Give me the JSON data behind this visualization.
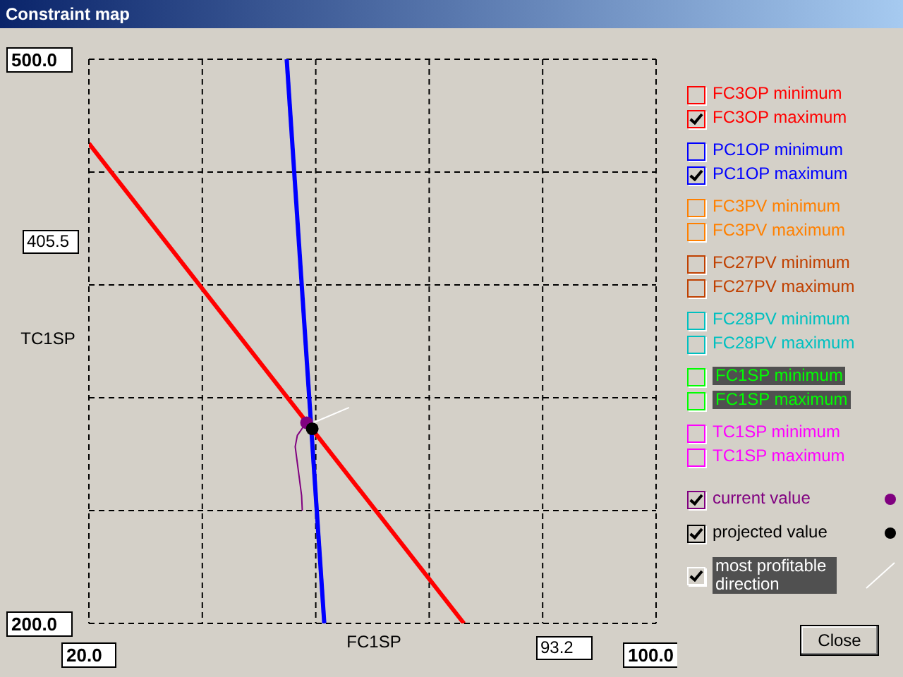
{
  "chart_data": {
    "type": "line",
    "title": "Constraint map",
    "xlabel": "FC1SP",
    "ylabel": "TC1SP",
    "xlim": [
      20,
      100
    ],
    "ylim": [
      200,
      500
    ],
    "xticks": [
      {
        "value": 20,
        "label": "20.0"
      },
      {
        "value": 36,
        "label": null
      },
      {
        "value": 52,
        "label": null
      },
      {
        "value": 68,
        "label": null
      },
      {
        "value": 84,
        "label": null
      },
      {
        "value": 100,
        "label": "100.0"
      }
    ],
    "yticks": [
      {
        "value": 200,
        "label": "200.0"
      },
      {
        "value": 260,
        "label": null
      },
      {
        "value": 320,
        "label": null
      },
      {
        "value": 380,
        "label": null
      },
      {
        "value": 440,
        "label": null
      },
      {
        "value": 500,
        "label": "500.0"
      }
    ],
    "grid": true,
    "legend": "right",
    "annotations": [
      "405.5",
      "93.2",
      "Close"
    ],
    "series": [
      {
        "name": "FC3OP minimum",
        "color": "#ff0000"
      },
      {
        "name": "FC3OP maximum",
        "color": "#ff0000",
        "x": [
          20,
          72.9
        ],
        "values": [
          455.2,
          200
        ]
      },
      {
        "name": "PC1OP minimum",
        "color": "#0000ff"
      },
      {
        "name": "PC1OP maximum",
        "color": "#0000ff",
        "x": [
          47.9,
          53.2
        ],
        "values": [
          500,
          200
        ]
      },
      {
        "name": "FC3PV minimum",
        "color": "#ff8000"
      },
      {
        "name": "FC3PV maximum",
        "color": "#ff8000"
      },
      {
        "name": "FC27PV minimum",
        "color": "#c04000"
      },
      {
        "name": "FC27PV maximum",
        "color": "#c04000"
      },
      {
        "name": "FC28PV minimum",
        "color": "#00c0c0"
      },
      {
        "name": "FC28PV maximum",
        "color": "#00c0c0"
      },
      {
        "name": "FC1SP minimum",
        "color": "#00ff00"
      },
      {
        "name": "FC1SP maximum",
        "color": "#00ff00"
      },
      {
        "name": "TC1SP minimum",
        "color": "#ff00ff"
      },
      {
        "name": "TC1SP maximum",
        "color": "#ff00ff"
      },
      {
        "color": "#800080",
        "x": [
          50.1,
          50.0,
          49.1,
          49.4,
          50.6
        ],
        "values": [
          260,
          268,
          294,
          300,
          306.5
        ]
      },
      {
        "name": "current value",
        "type": "scatter",
        "color": "#800080",
        "x": [
          50.7
        ],
        "values": [
          306.7
        ]
      },
      {
        "name": "projected value",
        "type": "scatter",
        "color": "#000000",
        "x": [
          51.5
        ],
        "values": [
          303.5
        ]
      },
      {
        "name": "most profitable direction",
        "color": "#ffffff",
        "x": [
          51.5,
          56.7
        ],
        "values": [
          306.5,
          314.8
        ]
      }
    ]
  }
}
